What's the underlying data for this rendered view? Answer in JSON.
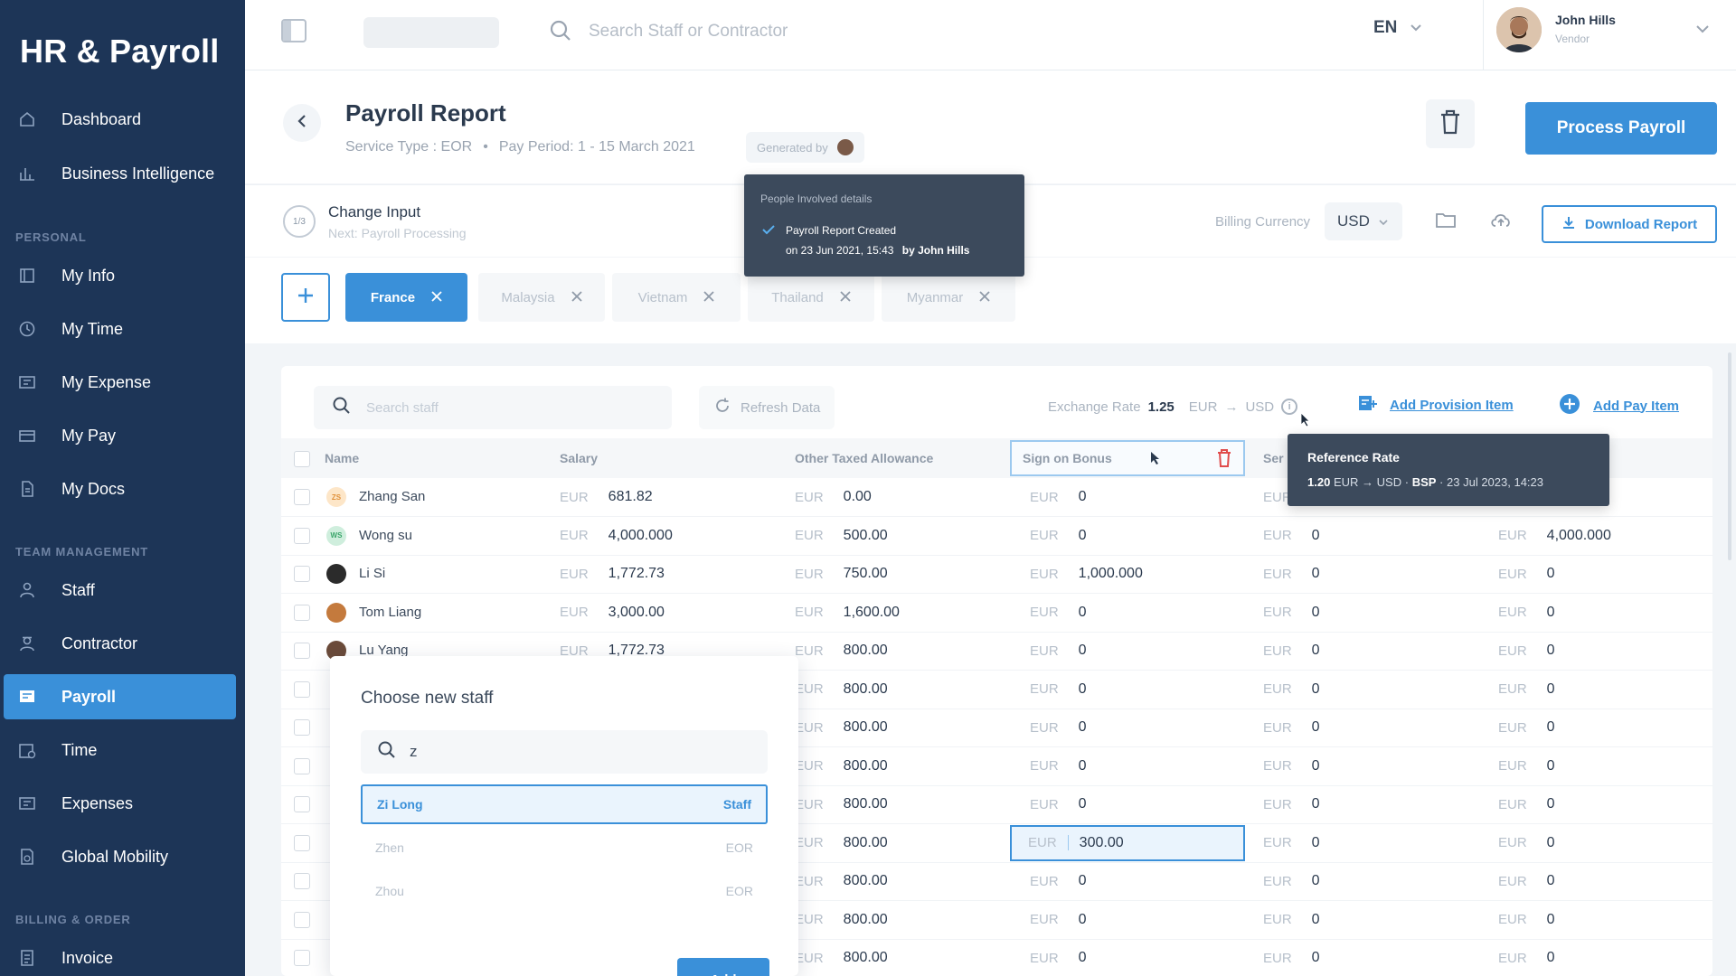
{
  "brand": "HR & Payroll",
  "nav": {
    "top_items": [
      {
        "label": "Dashboard",
        "icon": "home-icon"
      },
      {
        "label": "Business Intelligence",
        "icon": "bar-chart-icon"
      }
    ],
    "personal_header": "PERSONAL",
    "personal_items": [
      {
        "label": "My Info",
        "icon": "id-card-icon"
      },
      {
        "label": "My Time",
        "icon": "clock-icon"
      },
      {
        "label": "My Expense",
        "icon": "receipt-icon"
      },
      {
        "label": "My Pay",
        "icon": "wallet-icon"
      },
      {
        "label": "My Docs",
        "icon": "document-icon"
      }
    ],
    "team_header": "TEAM MANAGEMENT",
    "team_items": [
      {
        "label": "Staff",
        "icon": "person-icon"
      },
      {
        "label": "Contractor",
        "icon": "contractor-icon"
      },
      {
        "label": "Payroll",
        "icon": "payroll-icon",
        "active": true
      },
      {
        "label": "Time",
        "icon": "calendar-icon"
      },
      {
        "label": "Expenses",
        "icon": "expenses-icon"
      },
      {
        "label": "Global Mobility",
        "icon": "globe-doc-icon"
      }
    ],
    "billing_header": "BILLING & ORDER",
    "billing_items": [
      {
        "label": "Invoice",
        "icon": "invoice-icon"
      }
    ]
  },
  "topbar": {
    "search_placeholder": "Search Staff or Contractor",
    "language": "EN",
    "user_name": "John Hills",
    "user_role": "Vendor"
  },
  "report": {
    "title": "Payroll Report",
    "service_type": "Service Type : EOR",
    "pay_period": "Pay Period: 1 - 15 March 2021",
    "generated_by": "Generated by",
    "process_button": "Process Payroll"
  },
  "change_input": {
    "title": "Change Input",
    "subtitle": "Next: Payroll Processing",
    "step_text": "1/3",
    "billing_label": "Billing Currency",
    "billing_currency": "USD",
    "download_label": "Download Report"
  },
  "people_popover": {
    "title": "People Involved details",
    "line1": "Payroll Report Created",
    "line2": "on 23 Jun 2021, 15:43",
    "line2_by": "by John Hills"
  },
  "countries": [
    {
      "label": "France",
      "active": true
    },
    {
      "label": "Malaysia"
    },
    {
      "label": "Vietnam"
    },
    {
      "label": "Thailand"
    },
    {
      "label": "Myanmar"
    }
  ],
  "toolbar": {
    "search_placeholder": "Search staff",
    "refresh_label": "Refresh Data",
    "exchange_label": "Exchange Rate",
    "exchange_value": "1.25",
    "exchange_from": "EUR",
    "exchange_to": "USD",
    "add_provision": "Add Provision Item",
    "add_pay_item": "Add Pay Item"
  },
  "columns": {
    "name": "Name",
    "salary": "Salary",
    "other": "Other Taxed Allowance",
    "bonus": "Sign on Bonus",
    "partial": "Ser"
  },
  "currency": "EUR",
  "rows": [
    {
      "name": "Zhang San",
      "avatar": "ZS",
      "avatar_color": "#fde6c8",
      "avatar_text": "#e0913a",
      "salary": "681.82",
      "other": "0.00",
      "bonus": "0",
      "col5": "",
      "col6": ""
    },
    {
      "name": "Wong su",
      "avatar": "WS",
      "avatar_color": "#cfeedd",
      "avatar_text": "#3aa56a",
      "salary": "4,000.000",
      "other": "500.00",
      "bonus": "0",
      "col5": "0",
      "col6": "4,000.000"
    },
    {
      "name": "Li Si",
      "avatar": "",
      "avatar_color": "#2b2b2b",
      "avatar_text": "#ffffff",
      "salary": "1,772.73",
      "other": "750.00",
      "bonus": "1,000.000",
      "col5": "0",
      "col6": "0"
    },
    {
      "name": "Tom Liang",
      "avatar": "",
      "avatar_color": "#c47a3d",
      "avatar_text": "#ffffff",
      "salary": "3,000.00",
      "other": "1,600.00",
      "bonus": "0",
      "col5": "0",
      "col6": "0"
    },
    {
      "name": "Lu Yang",
      "avatar": "",
      "avatar_color": "#6b4b3a",
      "avatar_text": "#ffffff",
      "salary": "1,772.73",
      "other": "800.00",
      "bonus": "0",
      "col5": "0",
      "col6": "0"
    },
    {
      "name": "",
      "avatar": "",
      "salary": "",
      "other": "800.00",
      "bonus": "0",
      "col5": "0",
      "col6": "0"
    },
    {
      "name": "",
      "avatar": "",
      "salary": "",
      "other": "800.00",
      "bonus": "0",
      "col5": "0",
      "col6": "0"
    },
    {
      "name": "",
      "avatar": "",
      "salary": "",
      "other": "800.00",
      "bonus": "0",
      "col5": "0",
      "col6": "0"
    },
    {
      "name": "",
      "avatar": "",
      "salary": "",
      "other": "800.00",
      "bonus": "0",
      "col5": "0",
      "col6": "0"
    },
    {
      "name": "",
      "avatar": "",
      "salary": "",
      "other": "800.00",
      "bonus": "300.00",
      "col5": "0",
      "col6": "0",
      "focus": true
    },
    {
      "name": "",
      "avatar": "",
      "salary": "",
      "other": "800.00",
      "bonus": "0",
      "col5": "0",
      "col6": "0"
    },
    {
      "name": "",
      "avatar": "",
      "salary": "",
      "other": "800.00",
      "bonus": "0",
      "col5": "0",
      "col6": "0"
    },
    {
      "name": "",
      "avatar": "",
      "salary": "",
      "other": "800.00",
      "bonus": "0",
      "col5": "0",
      "col6": "0"
    }
  ],
  "ref_rate": {
    "title": "Reference Rate",
    "rate": "1.20",
    "from": "EUR",
    "to": "USD",
    "source": "BSP",
    "date": "23 Jul 2023, 14:23"
  },
  "staff_picker": {
    "title": "Choose new staff",
    "query": "z",
    "options": [
      {
        "name": "Zi Long",
        "type": "Staff",
        "selected": true
      },
      {
        "name": "Zhen",
        "type": "EOR"
      },
      {
        "name": "Zhou",
        "type": "EOR"
      }
    ],
    "add_label": "Add"
  },
  "colors": {
    "sidebar": "#1d3557",
    "accent": "#3a90d9",
    "tooltip": "#3c4a5c",
    "delete": "#e04b4b"
  }
}
